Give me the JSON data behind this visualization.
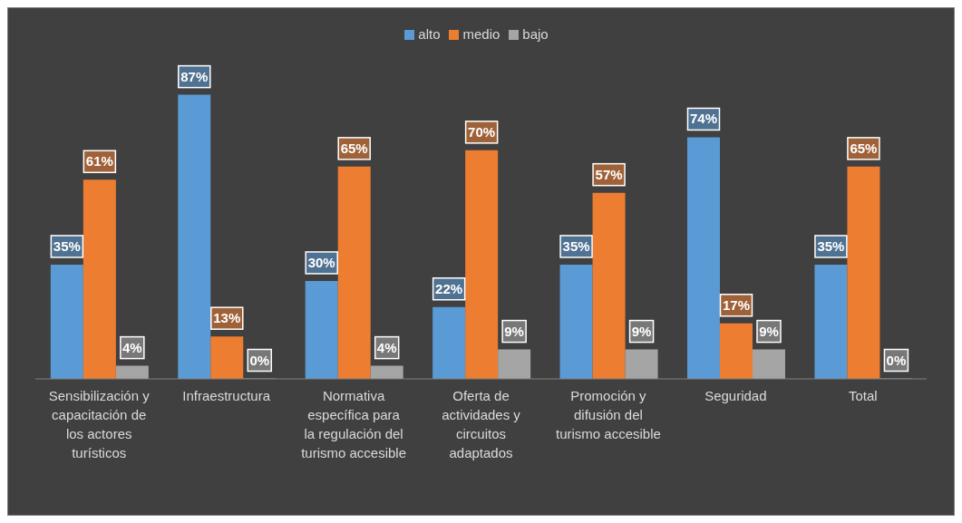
{
  "chart_data": {
    "type": "bar",
    "categories": [
      "Sensibilización y capacitación de los actores turísticos",
      "Infraestructura",
      "Normativa específica para la regulación del turismo accesible",
      "Oferta de actividades y circuitos adaptados",
      "Promoción y difusión del turismo accesible",
      "Seguridad",
      "Total"
    ],
    "series": [
      {
        "name": "alto",
        "color": "#5b9bd5",
        "values": [
          35,
          87,
          30,
          22,
          35,
          74,
          35
        ],
        "value_labels": [
          "35%",
          "87%",
          "30%",
          "22%",
          "35%",
          "74%",
          "35%"
        ]
      },
      {
        "name": "medio",
        "color": "#ed7d31",
        "values": [
          61,
          13,
          65,
          70,
          57,
          17,
          65
        ],
        "value_labels": [
          "61%",
          "13%",
          "65%",
          "70%",
          "57%",
          "17%",
          "65%"
        ]
      },
      {
        "name": "bajo",
        "color": "#a5a5a5",
        "values": [
          4,
          0,
          4,
          9,
          9,
          9,
          0
        ],
        "value_labels": [
          "4%",
          "0%",
          "4%",
          "9%",
          "9%",
          "9%",
          "0%"
        ]
      }
    ],
    "legend": "top",
    "grid": false
  }
}
